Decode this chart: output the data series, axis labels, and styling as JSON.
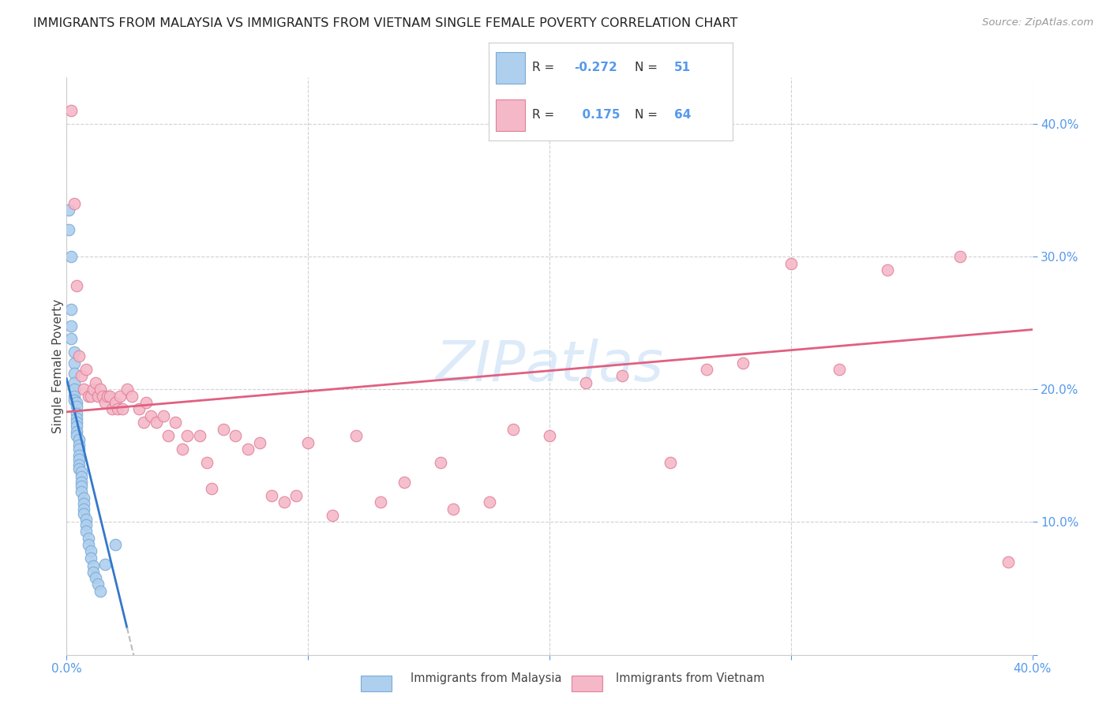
{
  "title": "IMMIGRANTS FROM MALAYSIA VS IMMIGRANTS FROM VIETNAM SINGLE FEMALE POVERTY CORRELATION CHART",
  "source": "Source: ZipAtlas.com",
  "ylabel": "Single Female Poverty",
  "xmin": 0.0,
  "xmax": 0.4,
  "ymin": 0.0,
  "ymax": 0.435,
  "malaysia_R": -0.272,
  "malaysia_N": 51,
  "vietnam_R": 0.175,
  "vietnam_N": 64,
  "malaysia_color": "#aecfee",
  "malaysia_edge": "#7aabd6",
  "vietnam_color": "#f5b8c8",
  "vietnam_edge": "#e08098",
  "malaysia_line_color": "#3377cc",
  "vietnam_line_color": "#e06080",
  "dashed_line_color": "#bbbbbb",
  "tick_color": "#5599ee",
  "grid_color": "#cccccc",
  "watermark_color": "#c5ddf5",
  "malaysia_slope": -7.5,
  "malaysia_intercept": 0.208,
  "malaysia_line_xmax": 0.025,
  "vietnam_slope": 0.155,
  "vietnam_intercept": 0.183,
  "malaysia_x": [
    0.001,
    0.001,
    0.002,
    0.002,
    0.002,
    0.002,
    0.003,
    0.003,
    0.003,
    0.003,
    0.003,
    0.003,
    0.003,
    0.004,
    0.004,
    0.004,
    0.004,
    0.004,
    0.004,
    0.004,
    0.004,
    0.005,
    0.005,
    0.005,
    0.005,
    0.005,
    0.005,
    0.005,
    0.006,
    0.006,
    0.006,
    0.006,
    0.006,
    0.007,
    0.007,
    0.007,
    0.007,
    0.008,
    0.008,
    0.008,
    0.009,
    0.009,
    0.01,
    0.01,
    0.011,
    0.011,
    0.012,
    0.013,
    0.014,
    0.016,
    0.02
  ],
  "malaysia_y": [
    0.335,
    0.32,
    0.3,
    0.26,
    0.248,
    0.238,
    0.228,
    0.22,
    0.212,
    0.205,
    0.2,
    0.195,
    0.192,
    0.19,
    0.187,
    0.182,
    0.178,
    0.175,
    0.172,
    0.168,
    0.165,
    0.162,
    0.158,
    0.155,
    0.15,
    0.147,
    0.143,
    0.14,
    0.138,
    0.134,
    0.13,
    0.127,
    0.123,
    0.118,
    0.114,
    0.11,
    0.106,
    0.102,
    0.098,
    0.093,
    0.088,
    0.083,
    0.078,
    0.073,
    0.067,
    0.062,
    0.058,
    0.053,
    0.048,
    0.068,
    0.083
  ],
  "vietnam_x": [
    0.002,
    0.003,
    0.004,
    0.005,
    0.006,
    0.007,
    0.008,
    0.009,
    0.01,
    0.011,
    0.012,
    0.013,
    0.014,
    0.015,
    0.016,
    0.017,
    0.018,
    0.019,
    0.02,
    0.021,
    0.022,
    0.023,
    0.025,
    0.027,
    0.03,
    0.032,
    0.033,
    0.035,
    0.037,
    0.04,
    0.042,
    0.045,
    0.048,
    0.05,
    0.055,
    0.058,
    0.06,
    0.065,
    0.07,
    0.075,
    0.08,
    0.085,
    0.09,
    0.095,
    0.1,
    0.11,
    0.12,
    0.13,
    0.14,
    0.155,
    0.16,
    0.175,
    0.185,
    0.2,
    0.215,
    0.23,
    0.25,
    0.265,
    0.28,
    0.3,
    0.32,
    0.34,
    0.37,
    0.39
  ],
  "vietnam_y": [
    0.41,
    0.34,
    0.278,
    0.225,
    0.21,
    0.2,
    0.215,
    0.195,
    0.195,
    0.2,
    0.205,
    0.195,
    0.2,
    0.195,
    0.19,
    0.195,
    0.195,
    0.185,
    0.19,
    0.185,
    0.195,
    0.185,
    0.2,
    0.195,
    0.185,
    0.175,
    0.19,
    0.18,
    0.175,
    0.18,
    0.165,
    0.175,
    0.155,
    0.165,
    0.165,
    0.145,
    0.125,
    0.17,
    0.165,
    0.155,
    0.16,
    0.12,
    0.115,
    0.12,
    0.16,
    0.105,
    0.165,
    0.115,
    0.13,
    0.145,
    0.11,
    0.115,
    0.17,
    0.165,
    0.205,
    0.21,
    0.145,
    0.215,
    0.22,
    0.295,
    0.215,
    0.29,
    0.3,
    0.07
  ]
}
